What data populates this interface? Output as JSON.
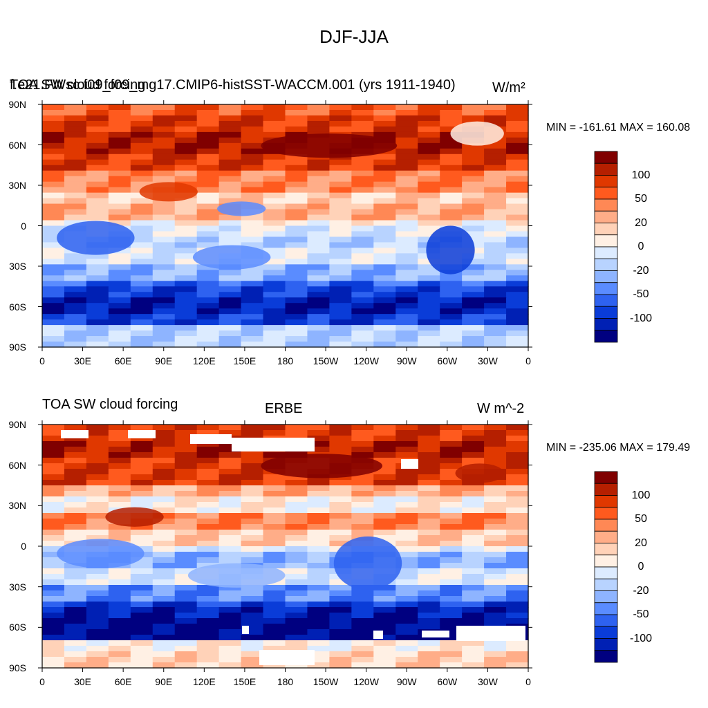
{
  "figure": {
    "title": "DJF-JJA"
  },
  "panels": [
    {
      "left_title": "f.e21.FWsc.f09_f09_mg17.CMIP6-histSST-WACCM.001 (yrs 1911-1940)",
      "left_title_overlap": "TOA SW cloud forcing",
      "center_title": "",
      "right_title": "W/m²",
      "minmax": "MIN = -161.61 MAX = 160.08",
      "lat_ticks": [
        "90N",
        "60N",
        "30N",
        "0",
        "30S",
        "60S",
        "90S"
      ],
      "lon_ticks": [
        "0",
        "30E",
        "60E",
        "90E",
        "120E",
        "150E",
        "180",
        "150W",
        "120W",
        "90W",
        "60W",
        "30W",
        "0"
      ],
      "colorbar_labels": [
        "100",
        "50",
        "20",
        "0",
        "-20",
        "-50",
        "-100"
      ]
    },
    {
      "left_title": "TOA SW cloud forcing",
      "center_title": "ERBE",
      "right_title": "W m^-2",
      "minmax": "MIN = -235.06 MAX = 179.49",
      "lat_ticks": [
        "90N",
        "60N",
        "30N",
        "0",
        "30S",
        "60S",
        "90S"
      ],
      "lon_ticks": [
        "0",
        "30E",
        "60E",
        "90E",
        "120E",
        "150E",
        "180",
        "150W",
        "120W",
        "90W",
        "60W",
        "30W",
        "0"
      ],
      "colorbar_labels": [
        "100",
        "50",
        "20",
        "0",
        "-20",
        "-50",
        "-100"
      ]
    }
  ],
  "colorbar": {
    "colors": [
      "#800000",
      "#b51f00",
      "#e03800",
      "#ff5a1e",
      "#ff8855",
      "#ffad88",
      "#ffd2b8",
      "#fff0e4",
      "#dcebff",
      "#b8d3ff",
      "#8eb4ff",
      "#5a8cff",
      "#2e62f0",
      "#0a3cd8",
      "#0020b4",
      "#000080"
    ]
  }
}
